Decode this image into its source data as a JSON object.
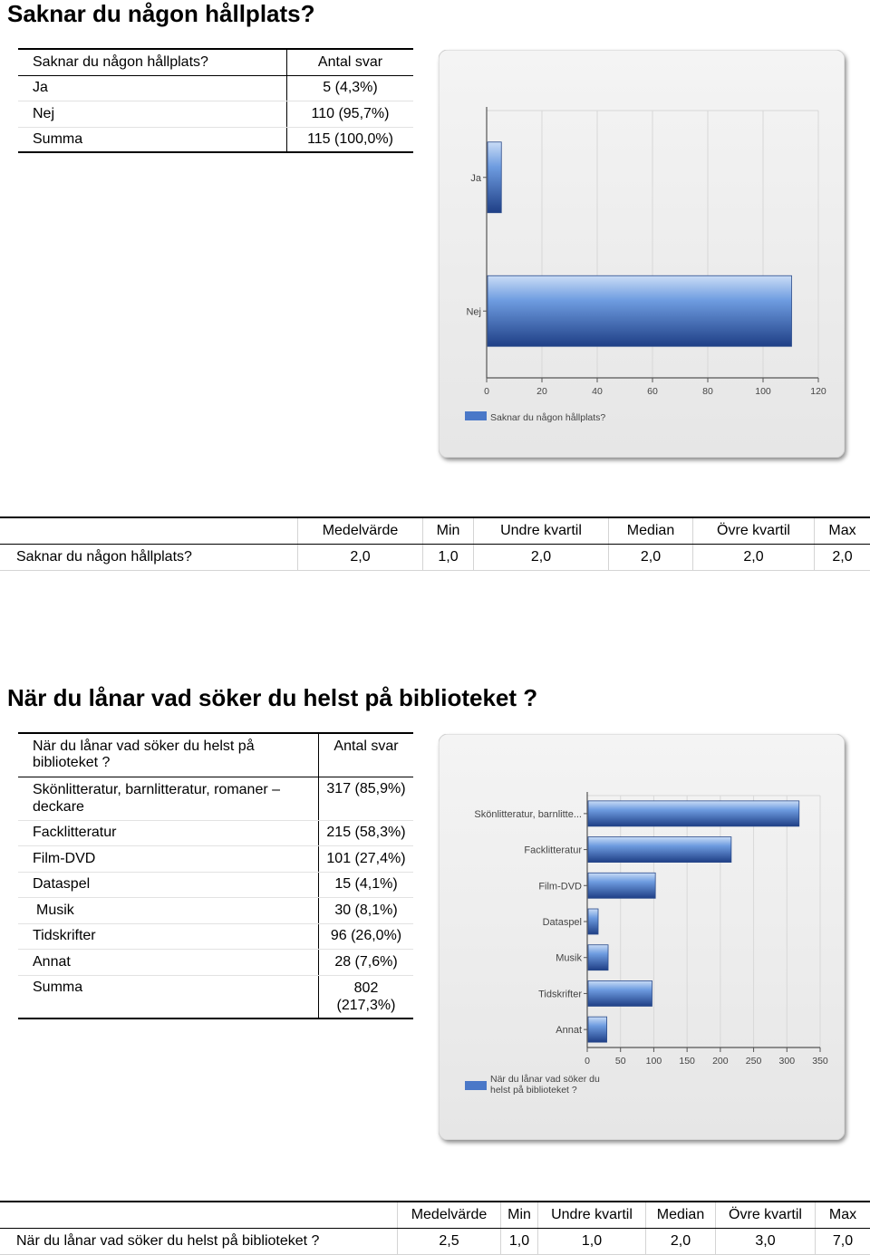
{
  "section1": {
    "heading": "Saknar du någon hållplats?",
    "table": {
      "header": [
        "Saknar du någon hållplats?",
        "Antal svar"
      ],
      "rows": [
        {
          "label": "Ja",
          "value": "5 (4,3%)"
        },
        {
          "label": "Nej",
          "value": "110 (95,7%)"
        }
      ],
      "sum": {
        "label": "Summa",
        "value": "115 (100,0%)"
      }
    },
    "chart_data": {
      "type": "bar",
      "orientation": "horizontal",
      "categories": [
        "Ja",
        "Nej"
      ],
      "series": [
        {
          "name": "Saknar du någon hållplats?",
          "values": [
            5,
            110
          ]
        }
      ],
      "xlim": [
        0,
        120
      ],
      "xticks": [
        "0",
        "20",
        "40",
        "60",
        "80",
        "100",
        "120"
      ],
      "grid": true,
      "legend": "bottom-left",
      "color": "#4a78c8"
    },
    "stats": {
      "headers": [
        "Medelvärde",
        "Min",
        "Undre kvartil",
        "Median",
        "Övre kvartil",
        "Max"
      ],
      "row_label": "Saknar du någon hållplats?",
      "values": [
        "2,0",
        "1,0",
        "2,0",
        "2,0",
        "2,0",
        "2,0"
      ]
    }
  },
  "section2": {
    "heading": "När du lånar vad söker du helst på biblioteket ?",
    "table": {
      "header": [
        "När du lånar vad söker du helst på biblioteket ?",
        "Antal svar"
      ],
      "rows": [
        {
          "label": "Skönlitteratur, barnlitteratur, romaner – deckare",
          "value": "317 (85,9%)"
        },
        {
          "label": "Facklitteratur",
          "value": "215 (58,3%)"
        },
        {
          "label": "Film-DVD",
          "value": "101 (27,4%)"
        },
        {
          "label": "Dataspel",
          "value": "15 (4,1%)"
        },
        {
          "label": "Musik",
          "value": "30 (8,1%)"
        },
        {
          "label": "Tidskrifter",
          "value": "96 (26,0%)"
        },
        {
          "label": "Annat",
          "value": "28 (7,6%)"
        }
      ],
      "sum": {
        "label": "Summa",
        "value": "802 (217,3%)"
      }
    },
    "chart_data": {
      "type": "bar",
      "orientation": "horizontal",
      "categories": [
        "Skönlitteratur, barnlitte...",
        "Facklitteratur",
        "Film-DVD",
        "Dataspel",
        "Musik",
        "Tidskrifter",
        "Annat"
      ],
      "series": [
        {
          "name": "När du lånar vad söker du helst på biblioteket ?",
          "values": [
            317,
            215,
            101,
            15,
            30,
            96,
            28
          ]
        }
      ],
      "xlim": [
        0,
        350
      ],
      "xticks": [
        "0",
        "50",
        "100",
        "150",
        "200",
        "250",
        "300",
        "350"
      ],
      "grid": true,
      "legend": "bottom-left",
      "color": "#4a78c8"
    },
    "stats": {
      "headers": [
        "Medelvärde",
        "Min",
        "Undre kvartil",
        "Median",
        "Övre kvartil",
        "Max"
      ],
      "row_label": "När du lånar vad söker du helst på biblioteket ?",
      "values": [
        "2,5",
        "1,0",
        "1,0",
        "2,0",
        "3,0",
        "7,0"
      ]
    }
  }
}
